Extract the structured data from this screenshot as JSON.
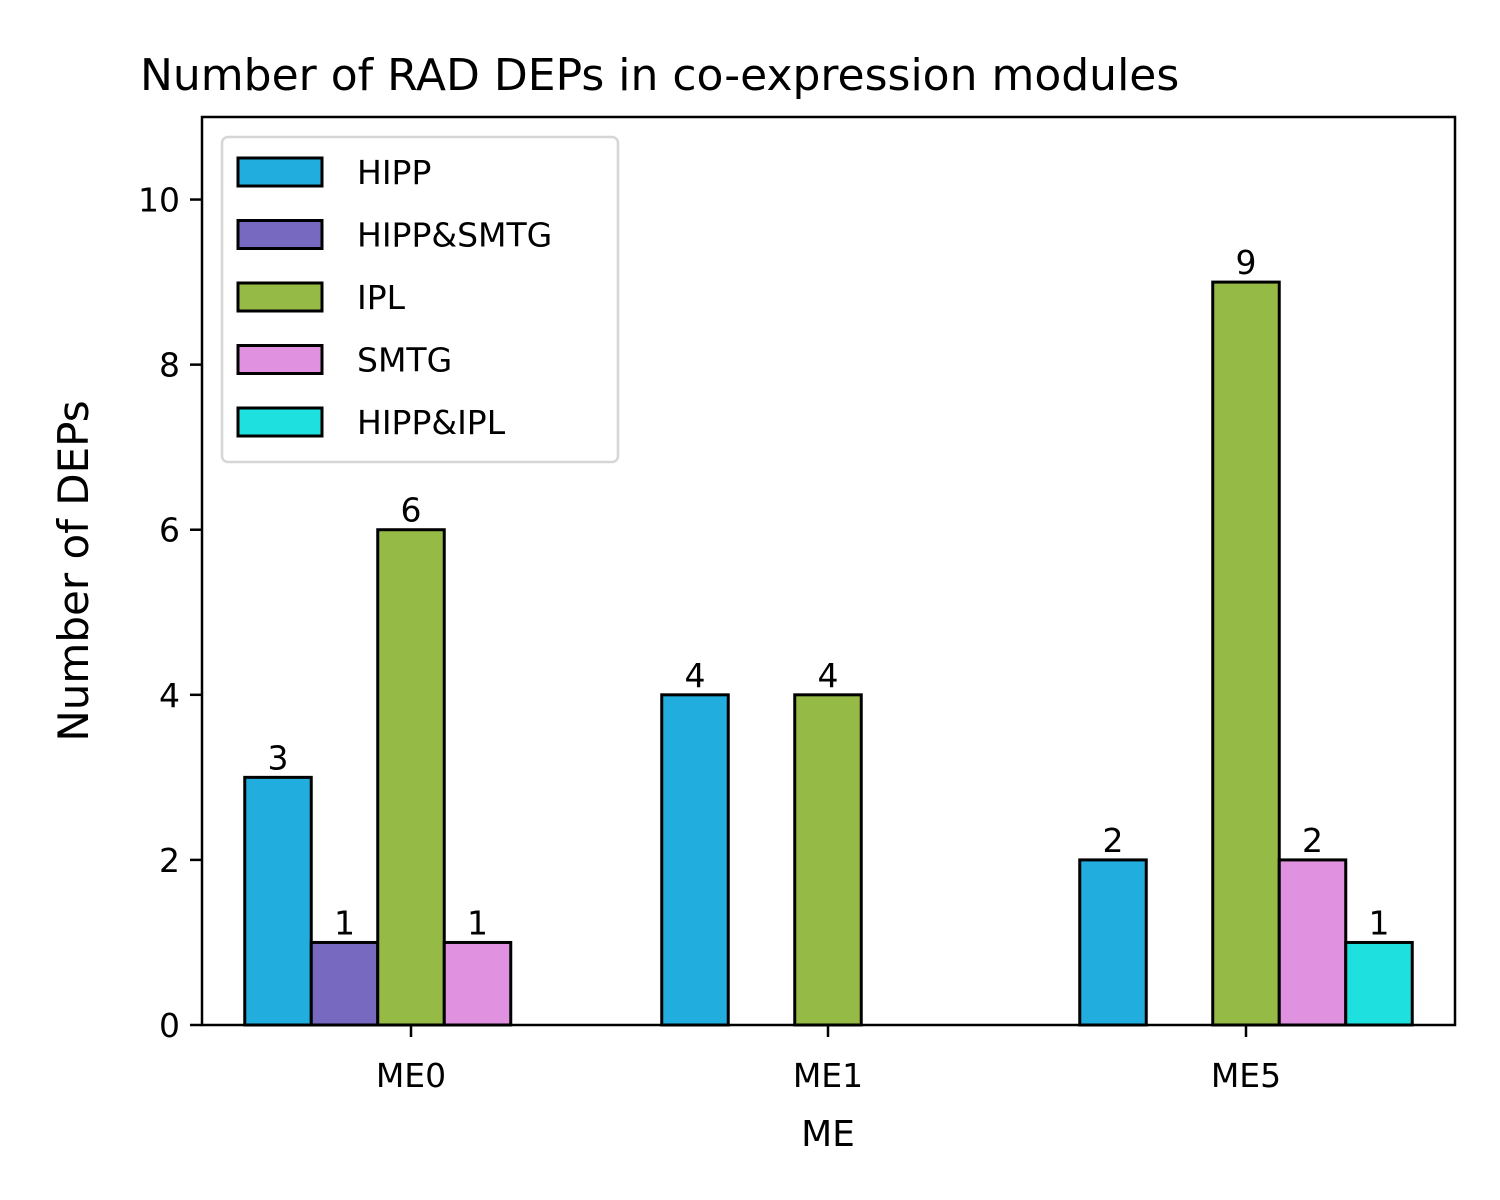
{
  "chart_data": {
    "type": "bar",
    "title": "Number of RAD DEPs in co-expression modules",
    "xlabel": "ME",
    "ylabel": "Number of DEPs",
    "categories": [
      "ME0",
      "ME1",
      "ME5"
    ],
    "series": [
      {
        "name": "HIPP",
        "color": "#21AEDF",
        "values": [
          3,
          4,
          2
        ]
      },
      {
        "name": "HIPP&SMTG",
        "color": "#7769C0",
        "values": [
          1,
          null,
          null
        ]
      },
      {
        "name": "IPL",
        "color": "#95BA46",
        "values": [
          6,
          4,
          9
        ]
      },
      {
        "name": "SMTG",
        "color": "#E092E0",
        "values": [
          1,
          null,
          2
        ]
      },
      {
        "name": "HIPP&IPL",
        "color": "#1EE0DF",
        "values": [
          null,
          null,
          1
        ]
      }
    ],
    "ylim": [
      0,
      11
    ],
    "yticks": [
      0,
      2,
      4,
      6,
      8,
      10
    ],
    "grid": false,
    "legend": "upper-left",
    "show_data_labels": true
  }
}
